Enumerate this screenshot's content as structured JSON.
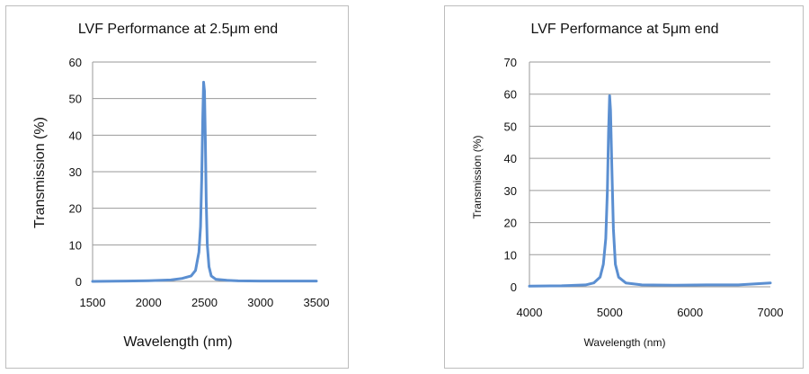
{
  "chart_data": [
    {
      "type": "line",
      "title": "LVF Performance at 2.5μm end",
      "xlabel": "Wavelength (nm)",
      "ylabel": "Transmission (%)",
      "xlim": [
        1500,
        3500
      ],
      "ylim": [
        0,
        60
      ],
      "xticks": [
        "1500",
        "2000",
        "2500",
        "3000",
        "3500"
      ],
      "yticks": [
        "0",
        "10",
        "20",
        "30",
        "40",
        "50",
        "60"
      ],
      "grid": true,
      "series": [
        {
          "color": "#5b8fd1",
          "points": [
            [
              1500,
              0
            ],
            [
              1800,
              0.1
            ],
            [
              2000,
              0.2
            ],
            [
              2200,
              0.4
            ],
            [
              2300,
              0.8
            ],
            [
              2380,
              1.5
            ],
            [
              2420,
              3
            ],
            [
              2450,
              8
            ],
            [
              2465,
              15
            ],
            [
              2475,
              28
            ],
            [
              2485,
              45
            ],
            [
              2492,
              54.5
            ],
            [
              2500,
              52
            ],
            [
              2508,
              38
            ],
            [
              2515,
              22
            ],
            [
              2525,
              10
            ],
            [
              2540,
              4
            ],
            [
              2560,
              1.5
            ],
            [
              2600,
              0.6
            ],
            [
              2700,
              0.3
            ],
            [
              2800,
              0.15
            ],
            [
              3000,
              0.1
            ],
            [
              3500,
              0.1
            ]
          ]
        }
      ]
    },
    {
      "type": "line",
      "title": "LVF Performance at 5μm end",
      "xlabel": "Wavelength (nm)",
      "ylabel": "Transmission (%)",
      "xlim": [
        4000,
        7000
      ],
      "ylim": [
        0,
        70
      ],
      "xticks": [
        "4000",
        "5000",
        "6000",
        "7000"
      ],
      "yticks": [
        "0",
        "10",
        "20",
        "30",
        "40",
        "50",
        "60",
        "70"
      ],
      "grid": true,
      "series": [
        {
          "color": "#5b8fd1",
          "points": [
            [
              4000,
              0.2
            ],
            [
              4400,
              0.3
            ],
            [
              4700,
              0.6
            ],
            [
              4800,
              1.2
            ],
            [
              4880,
              3
            ],
            [
              4920,
              7
            ],
            [
              4950,
              15
            ],
            [
              4970,
              30
            ],
            [
              4985,
              48
            ],
            [
              4998,
              59.5
            ],
            [
              5010,
              55
            ],
            [
              5025,
              38
            ],
            [
              5045,
              18
            ],
            [
              5070,
              7
            ],
            [
              5110,
              3
            ],
            [
              5200,
              1.2
            ],
            [
              5400,
              0.6
            ],
            [
              5800,
              0.5
            ],
            [
              6200,
              0.6
            ],
            [
              6600,
              0.6
            ],
            [
              7000,
              1.2
            ]
          ]
        }
      ]
    }
  ]
}
